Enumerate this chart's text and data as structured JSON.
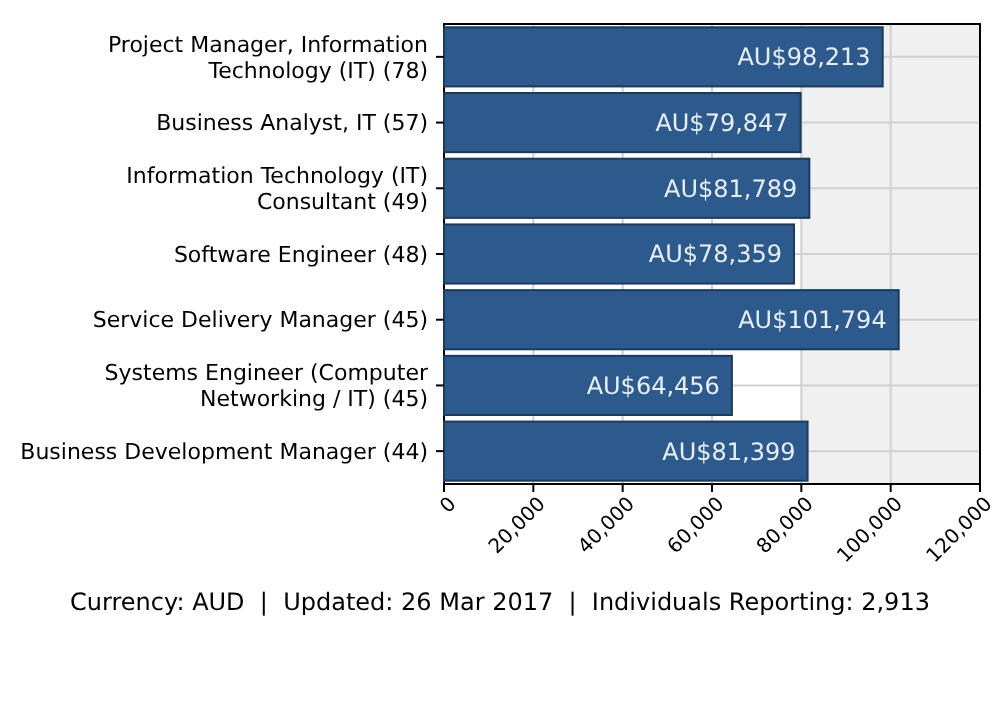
{
  "chart_data": {
    "type": "bar",
    "orientation": "horizontal",
    "categories": [
      "Project Manager, Information Technology (IT) (78)",
      "Business Analyst, IT (57)",
      "Information Technology (IT) Consultant (49)",
      "Software Engineer (48)",
      "Service Delivery Manager (45)",
      "Systems Engineer (Computer Networking / IT) (45)",
      "Business Development Manager (44)"
    ],
    "values": [
      98213,
      79847,
      81789,
      78359,
      101794,
      64456,
      81399
    ],
    "value_labels": [
      "AU$98,213",
      "AU$79,847",
      "AU$81,789",
      "AU$78,359",
      "AU$101,794",
      "AU$64,456",
      "AU$81,399"
    ],
    "color": "#2d5a8c",
    "xlim": [
      0,
      120000
    ],
    "xticks": [
      0,
      {
        "value": 20000,
        "label": "20,000"
      },
      {
        "value": 40000,
        "label": "40,000"
      },
      {
        "value": 60000,
        "label": "60,000"
      },
      {
        "value": 80000,
        "label": "80,000"
      },
      {
        "value": 100000,
        "label": "100,000"
      },
      {
        "value": 120000,
        "label": "120,000"
      }
    ],
    "grid": true,
    "bands": [
      {
        "axis": "x",
        "from": 80000,
        "to": 120000,
        "color": "#f0f0f0"
      }
    ],
    "annotations": [
      "Currency: AUD  |  Updated: 26 Mar 2017  |  Individuals Reporting: 2,913"
    ]
  }
}
